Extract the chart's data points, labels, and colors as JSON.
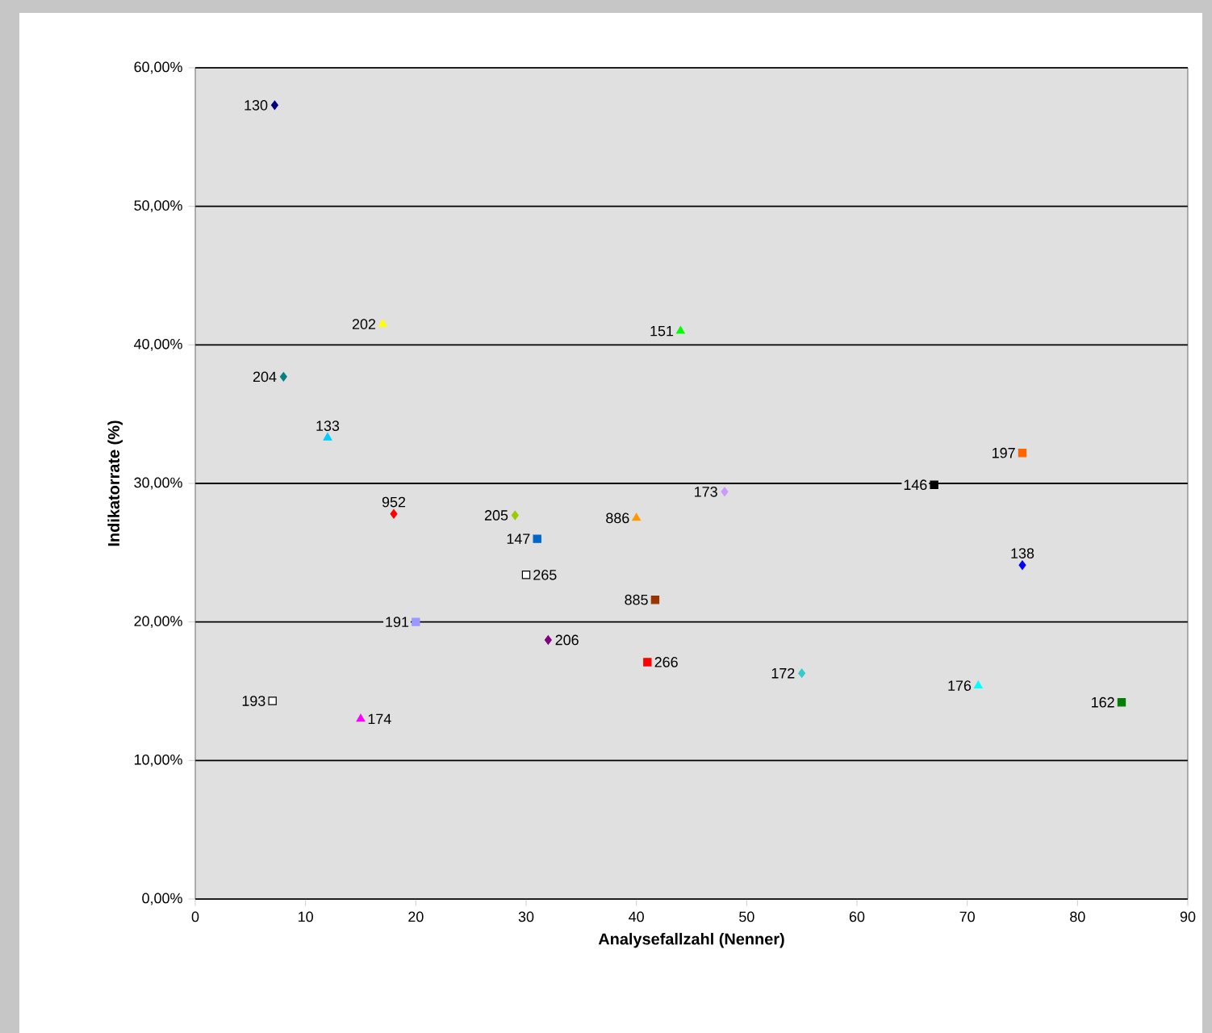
{
  "chart_data": {
    "type": "scatter",
    "xlabel": "Analysefallzahl (Nenner)",
    "ylabel": "Indikatorrate (%)",
    "xlim": [
      0,
      90
    ],
    "ylim": [
      0,
      60
    ],
    "xticks": [
      0,
      10,
      20,
      30,
      40,
      50,
      60,
      70,
      80,
      90
    ],
    "yticks": [
      {
        "value": 0,
        "label": "0,00%"
      },
      {
        "value": 10,
        "label": "10,00%"
      },
      {
        "value": 20,
        "label": "20,00%"
      },
      {
        "value": 30,
        "label": "30,00%"
      },
      {
        "value": 40,
        "label": "40,00%"
      },
      {
        "value": 50,
        "label": "50,00%"
      },
      {
        "value": 60,
        "label": "60,00%"
      }
    ],
    "grid": "y",
    "series": [
      {
        "name": "130",
        "color": "#000080",
        "marker": "diamond",
        "x": [
          7.2
        ],
        "values": [
          57.3
        ]
      },
      {
        "name": "202",
        "color": "#ffff00",
        "marker": "triangle",
        "x": [
          17
        ],
        "values": [
          41.5
        ]
      },
      {
        "name": "151",
        "color": "#00ff00",
        "marker": "triangle",
        "x": [
          44
        ],
        "values": [
          41.0
        ]
      },
      {
        "name": "204",
        "color": "#008080",
        "marker": "diamond",
        "x": [
          8
        ],
        "values": [
          37.7
        ]
      },
      {
        "name": "133",
        "color": "#00ccff",
        "marker": "triangle",
        "x": [
          12
        ],
        "values": [
          33.3
        ]
      },
      {
        "name": "952",
        "color": "#ff0000",
        "marker": "diamond",
        "x": [
          18
        ],
        "values": [
          27.8
        ]
      },
      {
        "name": "205",
        "color": "#99cc00",
        "marker": "diamond",
        "x": [
          29
        ],
        "values": [
          27.7
        ]
      },
      {
        "name": "147",
        "color": "#0066cc",
        "marker": "square",
        "x": [
          31
        ],
        "values": [
          26.0
        ]
      },
      {
        "name": "265",
        "color": "#ffffff",
        "marker": "square",
        "x": [
          30
        ],
        "values": [
          23.4
        ]
      },
      {
        "name": "886",
        "color": "#ff9900",
        "marker": "triangle",
        "x": [
          40
        ],
        "values": [
          27.5
        ]
      },
      {
        "name": "173",
        "color": "#cc99ff",
        "marker": "diamond",
        "x": [
          48
        ],
        "values": [
          29.4
        ]
      },
      {
        "name": "885",
        "color": "#993300",
        "marker": "square",
        "x": [
          41.7
        ],
        "values": [
          21.6
        ]
      },
      {
        "name": "191",
        "color": "#9999ff",
        "marker": "square",
        "x": [
          20
        ],
        "values": [
          20.0
        ]
      },
      {
        "name": "206",
        "color": "#800080",
        "marker": "diamond",
        "x": [
          32
        ],
        "values": [
          18.7
        ]
      },
      {
        "name": "266",
        "color": "#ff0000",
        "marker": "square",
        "x": [
          41
        ],
        "values": [
          17.1
        ]
      },
      {
        "name": "172",
        "color": "#33cccc",
        "marker": "diamond",
        "x": [
          55
        ],
        "values": [
          16.3
        ]
      },
      {
        "name": "176",
        "color": "#00ffff",
        "marker": "triangle",
        "x": [
          71
        ],
        "values": [
          15.4
        ]
      },
      {
        "name": "162",
        "color": "#008000",
        "marker": "square",
        "x": [
          84
        ],
        "values": [
          14.2
        ]
      },
      {
        "name": "146",
        "color": "#000000",
        "marker": "square",
        "x": [
          67
        ],
        "values": [
          29.9
        ]
      },
      {
        "name": "197",
        "color": "#ff6600",
        "marker": "square",
        "x": [
          75
        ],
        "values": [
          32.2
        ]
      },
      {
        "name": "138",
        "color": "#0000ff",
        "marker": "diamond",
        "x": [
          75
        ],
        "values": [
          24.1
        ]
      },
      {
        "name": "193",
        "color": "#ffffff",
        "marker": "square",
        "x": [
          7
        ],
        "values": [
          14.3
        ]
      },
      {
        "name": "174",
        "color": "#ff00ff",
        "marker": "triangle",
        "x": [
          15
        ],
        "values": [
          13.0
        ]
      }
    ]
  }
}
